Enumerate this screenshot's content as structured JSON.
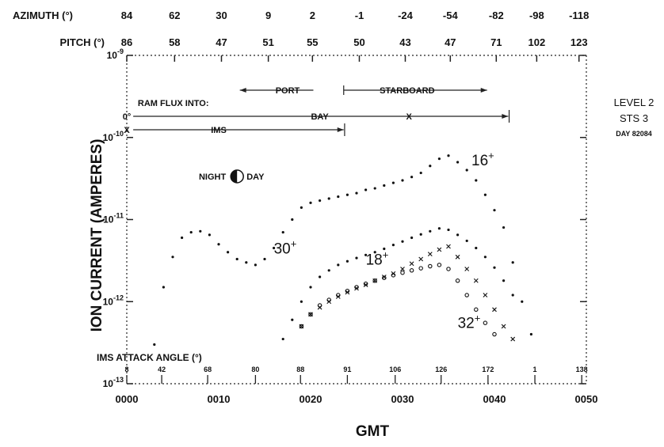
{
  "chart_data": {
    "type": "scatter",
    "title": "",
    "xlabel": "GMT",
    "ylabel": "ION CURRENT (AMPERES)",
    "y_scale": "log",
    "ylim": [
      1e-13,
      1e-09
    ],
    "xlim": [
      0,
      50
    ],
    "x_tick_labels": [
      "0000",
      "0010",
      "0020",
      "0030",
      "0040",
      "0050"
    ],
    "x_tick_values": [
      0,
      10,
      20,
      30,
      40,
      50
    ],
    "y_ticks": [
      {
        "value": 1e-09,
        "mant": "10",
        "exp": "-9"
      },
      {
        "value": 1e-10,
        "mant": "10",
        "exp": "-10"
      },
      {
        "value": 1e-11,
        "mant": "10",
        "exp": "-11"
      },
      {
        "value": 1e-12,
        "mant": "10",
        "exp": "-12"
      },
      {
        "value": 1e-13,
        "mant": "10",
        "exp": "-13"
      }
    ],
    "top_axes": {
      "azimuth_label": "AZIMUTH (°)",
      "azimuth": [
        {
          "x": 0,
          "label": "84"
        },
        {
          "x": 5.2,
          "label": "62"
        },
        {
          "x": 10.3,
          "label": "30"
        },
        {
          "x": 15.4,
          "label": "9"
        },
        {
          "x": 20.2,
          "label": "2"
        },
        {
          "x": 25.3,
          "label": "-1"
        },
        {
          "x": 30.3,
          "label": "-24"
        },
        {
          "x": 35.2,
          "label": "-54"
        },
        {
          "x": 40.2,
          "label": "-82"
        },
        {
          "x": 44.6,
          "label": "-98"
        },
        {
          "x": 49.2,
          "label": "-118"
        }
      ],
      "pitch_label": "PITCH (°)",
      "pitch": [
        {
          "x": 0,
          "label": "86"
        },
        {
          "x": 5.2,
          "label": "58"
        },
        {
          "x": 10.3,
          "label": "47"
        },
        {
          "x": 15.4,
          "label": "51"
        },
        {
          "x": 20.2,
          "label": "55"
        },
        {
          "x": 25.3,
          "label": "50"
        },
        {
          "x": 30.3,
          "label": "43"
        },
        {
          "x": 35.2,
          "label": "47"
        },
        {
          "x": 40.2,
          "label": "71"
        },
        {
          "x": 44.6,
          "label": "102"
        },
        {
          "x": 49.2,
          "label": "123"
        }
      ]
    },
    "attack_angle": {
      "label": "IMS ATTACK ANGLE (°)",
      "ticks": [
        {
          "x": 0,
          "label": "8"
        },
        {
          "x": 3.8,
          "label": "42"
        },
        {
          "x": 8.8,
          "label": "68"
        },
        {
          "x": 14.0,
          "label": "80"
        },
        {
          "x": 18.9,
          "label": "88"
        },
        {
          "x": 24.0,
          "label": "91"
        },
        {
          "x": 29.2,
          "label": "106"
        },
        {
          "x": 34.2,
          "label": "126"
        },
        {
          "x": 39.3,
          "label": "172"
        },
        {
          "x": 44.4,
          "label": "1"
        },
        {
          "x": 49.5,
          "label": "138"
        }
      ]
    },
    "annotations": {
      "port": "PORT",
      "starboard": "STARBOARD",
      "ram_flux": "RAM FLUX INTO:",
      "bay": "BAY",
      "ims": "IMS",
      "x_mark": "X",
      "zero_deg": "0°",
      "night": "NIGHT",
      "day": "DAY"
    },
    "side_text": {
      "line1": "LEVEL 2",
      "line2": "STS 3",
      "line3": "DAY 82084"
    },
    "series": [
      {
        "name": "16+",
        "marker": "dot",
        "points": [
          [
            3,
            3e-13
          ],
          [
            4,
            1.5e-12
          ],
          [
            5,
            3.5e-12
          ],
          [
            6,
            6e-12
          ],
          [
            7,
            7e-12
          ],
          [
            8,
            7.2e-12
          ],
          [
            9,
            6.5e-12
          ],
          [
            10,
            5e-12
          ],
          [
            11,
            4e-12
          ],
          [
            12,
            3.3e-12
          ],
          [
            13,
            3e-12
          ],
          [
            14,
            2.8e-12
          ],
          [
            15,
            3.3e-12
          ],
          [
            16,
            4.5e-12
          ],
          [
            17,
            7e-12
          ],
          [
            18,
            1e-11
          ],
          [
            19,
            1.4e-11
          ],
          [
            20,
            1.6e-11
          ],
          [
            21,
            1.7e-11
          ],
          [
            22,
            1.8e-11
          ],
          [
            23,
            1.9e-11
          ],
          [
            24,
            2e-11
          ],
          [
            25,
            2.1e-11
          ],
          [
            26,
            2.3e-11
          ],
          [
            27,
            2.4e-11
          ],
          [
            28,
            2.6e-11
          ],
          [
            29,
            2.8e-11
          ],
          [
            30,
            3e-11
          ],
          [
            31,
            3.3e-11
          ],
          [
            32,
            3.7e-11
          ],
          [
            33,
            4.5e-11
          ],
          [
            34,
            5.5e-11
          ],
          [
            35,
            6e-11
          ],
          [
            36,
            5e-11
          ],
          [
            37,
            4e-11
          ],
          [
            38,
            3e-11
          ],
          [
            39,
            2e-11
          ],
          [
            40,
            1.3e-11
          ],
          [
            41,
            8e-12
          ],
          [
            42,
            3e-12
          ],
          [
            43,
            1e-12
          ],
          [
            44,
            4e-13
          ]
        ]
      },
      {
        "name": "30+",
        "marker": "dot",
        "points": [
          [
            17,
            3.5e-13
          ],
          [
            18,
            6e-13
          ],
          [
            19,
            1e-12
          ],
          [
            20,
            1.5e-12
          ],
          [
            21,
            2e-12
          ],
          [
            22,
            2.4e-12
          ],
          [
            23,
            2.8e-12
          ],
          [
            24,
            3.1e-12
          ],
          [
            25,
            3.4e-12
          ],
          [
            26,
            3.7e-12
          ],
          [
            27,
            4e-12
          ],
          [
            28,
            4.4e-12
          ],
          [
            29,
            4.9e-12
          ],
          [
            30,
            5.4e-12
          ],
          [
            31,
            6e-12
          ],
          [
            32,
            6.6e-12
          ],
          [
            33,
            7.2e-12
          ],
          [
            34,
            7.8e-12
          ],
          [
            35,
            7.5e-12
          ],
          [
            36,
            6.5e-12
          ],
          [
            37,
            5.5e-12
          ],
          [
            38,
            4.5e-12
          ],
          [
            39,
            3.5e-12
          ],
          [
            40,
            2.6e-12
          ],
          [
            41,
            1.8e-12
          ],
          [
            42,
            1.2e-12
          ]
        ]
      },
      {
        "name": "18+",
        "marker": "x",
        "points": [
          [
            19,
            5e-13
          ],
          [
            20,
            7e-13
          ],
          [
            21,
            8.5e-13
          ],
          [
            22,
            1e-12
          ],
          [
            23,
            1.15e-12
          ],
          [
            24,
            1.3e-12
          ],
          [
            25,
            1.45e-12
          ],
          [
            26,
            1.6e-12
          ],
          [
            27,
            1.8e-12
          ],
          [
            28,
            2e-12
          ],
          [
            29,
            2.2e-12
          ],
          [
            30,
            2.5e-12
          ],
          [
            31,
            2.9e-12
          ],
          [
            32,
            3.3e-12
          ],
          [
            33,
            3.8e-12
          ],
          [
            34,
            4.3e-12
          ],
          [
            35,
            4.7e-12
          ],
          [
            36,
            3.5e-12
          ],
          [
            37,
            2.5e-12
          ],
          [
            38,
            1.8e-12
          ],
          [
            39,
            1.2e-12
          ],
          [
            40,
            8e-13
          ],
          [
            41,
            5e-13
          ],
          [
            42,
            3.5e-13
          ]
        ]
      },
      {
        "name": "32+",
        "marker": "circle",
        "points": [
          [
            19,
            5e-13
          ],
          [
            20,
            7e-13
          ],
          [
            21,
            9e-13
          ],
          [
            22,
            1.05e-12
          ],
          [
            23,
            1.2e-12
          ],
          [
            24,
            1.35e-12
          ],
          [
            25,
            1.5e-12
          ],
          [
            26,
            1.65e-12
          ],
          [
            27,
            1.8e-12
          ],
          [
            28,
            1.95e-12
          ],
          [
            29,
            2.1e-12
          ],
          [
            30,
            2.25e-12
          ],
          [
            31,
            2.4e-12
          ],
          [
            32,
            2.55e-12
          ],
          [
            33,
            2.7e-12
          ],
          [
            34,
            2.8e-12
          ],
          [
            35,
            2.5e-12
          ],
          [
            36,
            1.8e-12
          ],
          [
            37,
            1.2e-12
          ],
          [
            38,
            8e-13
          ],
          [
            39,
            5.5e-13
          ],
          [
            40,
            4e-13
          ]
        ]
      }
    ]
  }
}
